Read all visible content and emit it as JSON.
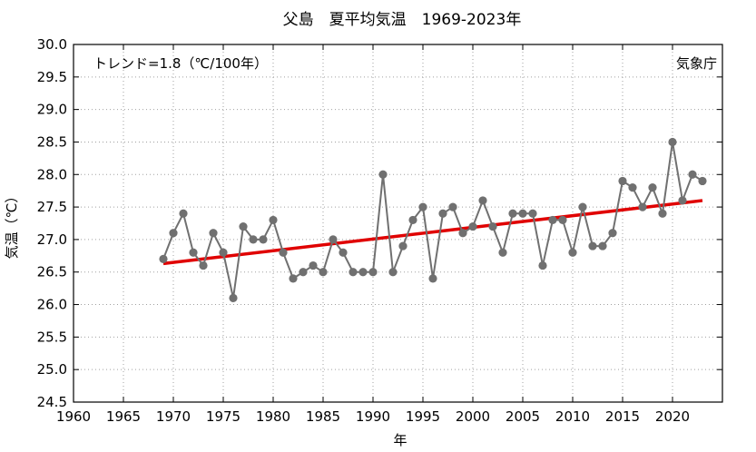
{
  "chart_data": {
    "type": "line",
    "title": "父島　夏平均気温　1969-2023年",
    "xlabel": "年",
    "ylabel": "気温（℃）",
    "trend_label": "トレンド=1.8（℃/100年）",
    "source_label": "気象庁",
    "xlim": [
      1960,
      2025
    ],
    "ylim": [
      24.5,
      30.0
    ],
    "x_ticks": [
      1960,
      1965,
      1970,
      1975,
      1980,
      1985,
      1990,
      1995,
      2000,
      2005,
      2010,
      2015,
      2020
    ],
    "y_ticks": [
      "24.5",
      "25.0",
      "25.5",
      "26.0",
      "26.5",
      "27.0",
      "27.5",
      "28.0",
      "28.5",
      "29.0",
      "29.5",
      "30.0"
    ],
    "grid": true,
    "colors": {
      "series": "#707070",
      "trend": "#e00000",
      "grid": "#a0a0a0"
    },
    "series": [
      {
        "x": [
          1969,
          1970,
          1971,
          1972,
          1973,
          1974,
          1975,
          1976,
          1977,
          1978,
          1979,
          1980,
          1981,
          1982,
          1983,
          1984,
          1985,
          1986,
          1987,
          1988,
          1989,
          1990,
          1991,
          1992,
          1993,
          1994,
          1995,
          1996,
          1997,
          1998,
          1999,
          2000,
          2001,
          2002,
          2003,
          2004,
          2005,
          2006,
          2007,
          2008,
          2009,
          2010,
          2011,
          2012,
          2013,
          2014,
          2015,
          2016,
          2017,
          2018,
          2019,
          2020,
          2021,
          2022,
          2023
        ],
        "values": [
          26.7,
          27.1,
          27.4,
          26.8,
          26.6,
          27.1,
          26.8,
          26.1,
          27.2,
          27.0,
          27.0,
          27.3,
          26.8,
          26.4,
          26.5,
          26.6,
          26.5,
          27.0,
          26.8,
          26.5,
          26.5,
          26.5,
          28.0,
          26.5,
          26.9,
          27.3,
          27.5,
          26.4,
          27.4,
          27.5,
          27.1,
          27.2,
          27.6,
          27.2,
          26.8,
          27.4,
          27.4,
          27.4,
          26.6,
          27.3,
          27.3,
          26.8,
          27.5,
          26.9,
          26.9,
          27.1,
          27.9,
          27.8,
          27.5,
          27.8,
          27.4,
          28.5,
          27.6,
          28.0,
          27.9
        ]
      }
    ],
    "trend": {
      "x": [
        1969,
        2023
      ],
      "values": [
        26.63,
        27.6
      ]
    }
  }
}
